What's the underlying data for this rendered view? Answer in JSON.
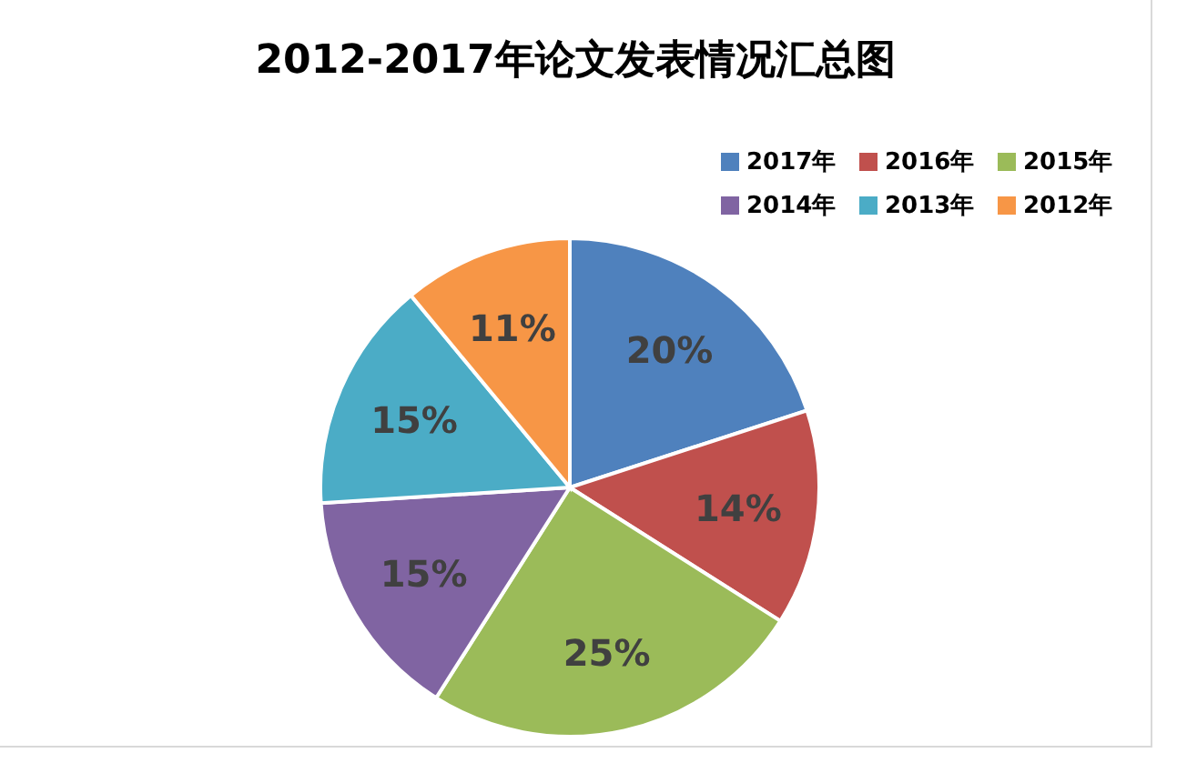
{
  "chart_data": {
    "type": "pie",
    "title": "2012-2017年论文发表情况汇总图",
    "categories": [
      "2017年",
      "2016年",
      "2015年",
      "2014年",
      "2013年",
      "2012年"
    ],
    "values": [
      20,
      14,
      25,
      15,
      15,
      11
    ],
    "value_labels": [
      "20%",
      "14%",
      "25%",
      "15%",
      "15%",
      "11%"
    ],
    "colors": [
      "#4f81bd",
      "#c0504d",
      "#9bbb59",
      "#8064a2",
      "#4bacc6",
      "#f79646"
    ],
    "legend": "top right"
  }
}
